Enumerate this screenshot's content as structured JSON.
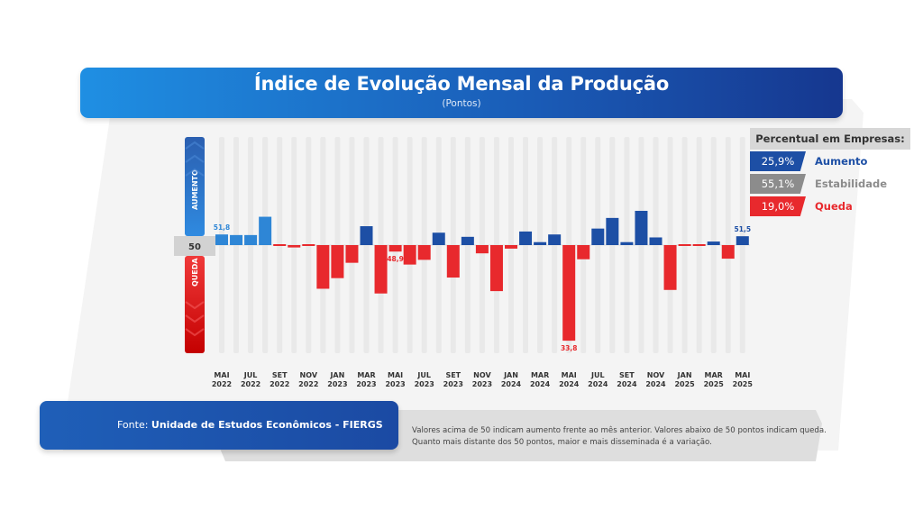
{
  "header": {
    "title": "Índice de Evolução Mensal da Produção",
    "subtitle": "(Pontos)"
  },
  "legend": {
    "title": "Percentual em Empresas:",
    "items": [
      {
        "value": "25,9%",
        "label": "Aumento",
        "color": "#1d4fa5"
      },
      {
        "value": "55,1%",
        "label": "Estabilidade",
        "color": "#8c8c8c"
      },
      {
        "value": "19,0%",
        "label": "Queda",
        "color": "#e8292d"
      }
    ]
  },
  "gauge": {
    "up_label": "AUMENTO",
    "mid_label": "50",
    "down_label": "QUEDA"
  },
  "footer": {
    "source_prefix": "Fonte: ",
    "source_name": "Unidade de Estudos Econômicos - FIERGS",
    "note_line1": "Valores acima de 50 indicam aumento frente ao mês anterior. Valores abaixo de 50 pontos indicam queda.",
    "note_line2": "Quanto mais distante dos 50 pontos, maior e mais disseminada é a variação."
  },
  "colors": {
    "prior_year_up": "#2e86d6",
    "recent_up": "#1d4fa5",
    "down": "#e8292d"
  },
  "chart_data": {
    "type": "bar",
    "baseline": 50,
    "ylim": [
      33,
      57
    ],
    "x": [
      "2022-05",
      "2022-06",
      "2022-07",
      "2022-08",
      "2022-09",
      "2022-10",
      "2022-11",
      "2022-12",
      "2023-01",
      "2023-02",
      "2023-03",
      "2023-04",
      "2023-05",
      "2023-06",
      "2023-07",
      "2023-08",
      "2023-09",
      "2023-10",
      "2023-11",
      "2023-12",
      "2024-01",
      "2024-02",
      "2024-03",
      "2024-04",
      "2024-05",
      "2024-06",
      "2024-07",
      "2024-08",
      "2024-09",
      "2024-10",
      "2024-11",
      "2024-12",
      "2025-01",
      "2025-02",
      "2025-03",
      "2025-04",
      "2025-05"
    ],
    "values": [
      51.8,
      51.7,
      51.7,
      54.8,
      49.9,
      49.6,
      49.9,
      42.6,
      44.4,
      47.0,
      53.2,
      41.8,
      48.9,
      46.7,
      47.5,
      52.1,
      44.5,
      51.4,
      48.6,
      42.2,
      49.4,
      52.3,
      50.5,
      51.8,
      33.8,
      47.6,
      52.8,
      54.6,
      50.5,
      55.8,
      51.3,
      42.4,
      49.8,
      49.9,
      50.6,
      47.7,
      51.5
    ],
    "data_labels": [
      {
        "x": "2022-05",
        "text": "51,8"
      },
      {
        "x": "2023-05",
        "text": "48,9"
      },
      {
        "x": "2024-05",
        "text": "33,8"
      },
      {
        "x": "2025-05",
        "text": "51,5"
      }
    ],
    "ticks": [
      {
        "x": "2022-05",
        "month": "MAI",
        "year": "2022"
      },
      {
        "x": "2022-07",
        "month": "JUL",
        "year": "2022"
      },
      {
        "x": "2022-09",
        "month": "SET",
        "year": "2022"
      },
      {
        "x": "2022-11",
        "month": "NOV",
        "year": "2022"
      },
      {
        "x": "2023-01",
        "month": "JAN",
        "year": "2023"
      },
      {
        "x": "2023-03",
        "month": "MAR",
        "year": "2023"
      },
      {
        "x": "2023-05",
        "month": "MAI",
        "year": "2023"
      },
      {
        "x": "2023-07",
        "month": "JUL",
        "year": "2023"
      },
      {
        "x": "2023-09",
        "month": "SET",
        "year": "2023"
      },
      {
        "x": "2023-11",
        "month": "NOV",
        "year": "2023"
      },
      {
        "x": "2024-01",
        "month": "JAN",
        "year": "2024"
      },
      {
        "x": "2024-03",
        "month": "MAR",
        "year": "2024"
      },
      {
        "x": "2024-05",
        "month": "MAI",
        "year": "2024"
      },
      {
        "x": "2024-07",
        "month": "JUL",
        "year": "2024"
      },
      {
        "x": "2024-09",
        "month": "SET",
        "year": "2024"
      },
      {
        "x": "2024-11",
        "month": "NOV",
        "year": "2024"
      },
      {
        "x": "2025-01",
        "month": "JAN",
        "year": "2025"
      },
      {
        "x": "2025-03",
        "month": "MAR",
        "year": "2025"
      },
      {
        "x": "2025-05",
        "month": "MAI",
        "year": "2025"
      }
    ]
  }
}
